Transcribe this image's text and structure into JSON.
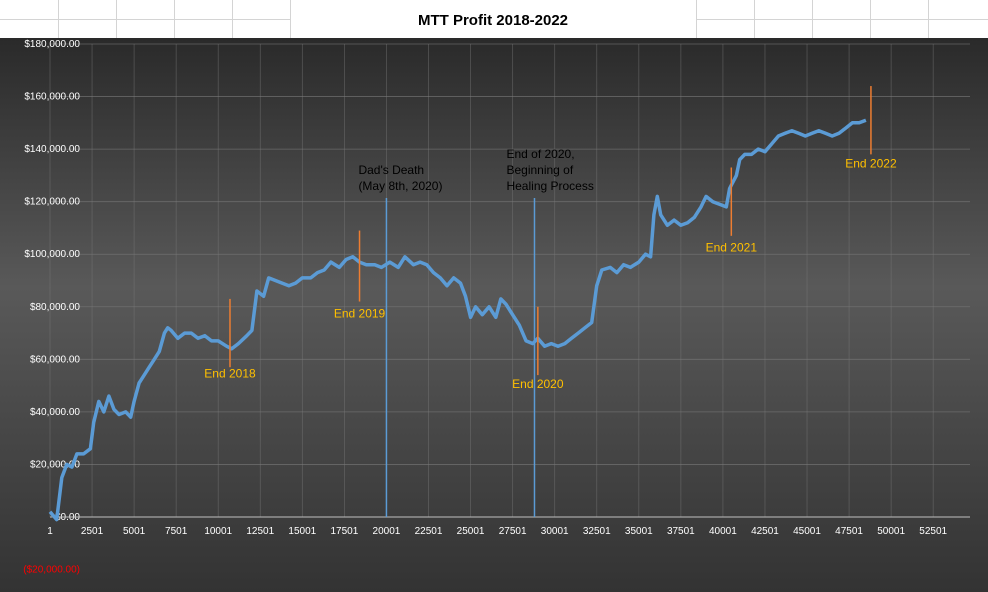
{
  "chart_data": {
    "type": "line",
    "title": "MTT Profit 2018-2022",
    "xlim": [
      1,
      52501
    ],
    "ylim": [
      -20000,
      180000
    ],
    "x_ticks": [
      "1",
      "2501",
      "5001",
      "7501",
      "10001",
      "12501",
      "15001",
      "17501",
      "20001",
      "22501",
      "25001",
      "27501",
      "30001",
      "32501",
      "35001",
      "37501",
      "40001",
      "42501",
      "45001",
      "47501",
      "50001",
      "52501"
    ],
    "y_ticks": [
      {
        "value": 180000,
        "label": "$180,000.00"
      },
      {
        "value": 160000,
        "label": "$160,000.00"
      },
      {
        "value": 140000,
        "label": "$140,000.00"
      },
      {
        "value": 120000,
        "label": "$120,000.00"
      },
      {
        "value": 100000,
        "label": "$100,000.00"
      },
      {
        "value": 80000,
        "label": "$80,000.00"
      },
      {
        "value": 60000,
        "label": "$60,000.00"
      },
      {
        "value": 40000,
        "label": "$40,000.00"
      },
      {
        "value": 20000,
        "label": "$20,000.00"
      },
      {
        "value": 0,
        "label": "$0.00"
      },
      {
        "value": -20000,
        "label": "($20,000.00)",
        "negative": true
      }
    ],
    "series": [
      {
        "points": [
          [
            1,
            2000
          ],
          [
            400,
            -1000
          ],
          [
            700,
            15000
          ],
          [
            1000,
            20000
          ],
          [
            1300,
            19000
          ],
          [
            1600,
            24000
          ],
          [
            2000,
            24000
          ],
          [
            2400,
            26000
          ],
          [
            2600,
            36000
          ],
          [
            2900,
            44000
          ],
          [
            3200,
            40000
          ],
          [
            3500,
            46000
          ],
          [
            3800,
            41000
          ],
          [
            4100,
            39000
          ],
          [
            4500,
            40000
          ],
          [
            4800,
            38000
          ],
          [
            5000,
            44000
          ],
          [
            5300,
            51000
          ],
          [
            5600,
            54000
          ],
          [
            5900,
            57000
          ],
          [
            6200,
            60000
          ],
          [
            6500,
            63000
          ],
          [
            6800,
            70000
          ],
          [
            7000,
            72000
          ],
          [
            7200,
            71000
          ],
          [
            7600,
            68000
          ],
          [
            8000,
            70000
          ],
          [
            8400,
            70000
          ],
          [
            8800,
            68000
          ],
          [
            9200,
            69000
          ],
          [
            9600,
            67000
          ],
          [
            10000,
            67000
          ],
          [
            10500,
            65000
          ],
          [
            10800,
            64000
          ],
          [
            11200,
            66000
          ],
          [
            11700,
            69000
          ],
          [
            12000,
            71000
          ],
          [
            12300,
            86000
          ],
          [
            12700,
            84000
          ],
          [
            13000,
            91000
          ],
          [
            13400,
            90000
          ],
          [
            13800,
            89000
          ],
          [
            14200,
            88000
          ],
          [
            14600,
            89000
          ],
          [
            15000,
            91000
          ],
          [
            15500,
            91000
          ],
          [
            15900,
            93000
          ],
          [
            16300,
            94000
          ],
          [
            16700,
            97000
          ],
          [
            17200,
            95000
          ],
          [
            17600,
            98000
          ],
          [
            18000,
            99000
          ],
          [
            18400,
            97000
          ],
          [
            18800,
            96000
          ],
          [
            19300,
            96000
          ],
          [
            19700,
            95000
          ],
          [
            20200,
            97000
          ],
          [
            20700,
            95000
          ],
          [
            21100,
            99000
          ],
          [
            21600,
            96000
          ],
          [
            22000,
            97000
          ],
          [
            22400,
            96000
          ],
          [
            22800,
            93000
          ],
          [
            23200,
            91000
          ],
          [
            23600,
            88000
          ],
          [
            24000,
            91000
          ],
          [
            24400,
            89000
          ],
          [
            24700,
            84000
          ],
          [
            25000,
            76000
          ],
          [
            25300,
            80000
          ],
          [
            25700,
            77000
          ],
          [
            26100,
            80000
          ],
          [
            26500,
            76000
          ],
          [
            26800,
            83000
          ],
          [
            27100,
            81000
          ],
          [
            27500,
            77000
          ],
          [
            27900,
            73000
          ],
          [
            28300,
            67000
          ],
          [
            28700,
            66000
          ],
          [
            29000,
            68000
          ],
          [
            29400,
            65000
          ],
          [
            29800,
            66000
          ],
          [
            30200,
            65000
          ],
          [
            30600,
            66000
          ],
          [
            31000,
            68000
          ],
          [
            31400,
            70000
          ],
          [
            31800,
            72000
          ],
          [
            32200,
            74000
          ],
          [
            32500,
            88000
          ],
          [
            32800,
            94000
          ],
          [
            33300,
            95000
          ],
          [
            33700,
            93000
          ],
          [
            34100,
            96000
          ],
          [
            34500,
            95000
          ],
          [
            35000,
            97000
          ],
          [
            35400,
            100000
          ],
          [
            35700,
            99000
          ],
          [
            35900,
            115000
          ],
          [
            36100,
            122000
          ],
          [
            36300,
            115000
          ],
          [
            36700,
            111000
          ],
          [
            37100,
            113000
          ],
          [
            37500,
            111000
          ],
          [
            37900,
            112000
          ],
          [
            38300,
            114000
          ],
          [
            38700,
            118000
          ],
          [
            39000,
            122000
          ],
          [
            39400,
            120000
          ],
          [
            39800,
            119000
          ],
          [
            40200,
            118000
          ],
          [
            40400,
            125000
          ],
          [
            40800,
            130000
          ],
          [
            41000,
            136000
          ],
          [
            41300,
            138000
          ],
          [
            41700,
            138000
          ],
          [
            42100,
            140000
          ],
          [
            42500,
            139000
          ],
          [
            42900,
            142000
          ],
          [
            43300,
            145000
          ],
          [
            43700,
            146000
          ],
          [
            44100,
            147000
          ],
          [
            44500,
            146000
          ],
          [
            44900,
            145000
          ],
          [
            45300,
            146000
          ],
          [
            45700,
            147000
          ],
          [
            46100,
            146000
          ],
          [
            46500,
            145000
          ],
          [
            46900,
            146000
          ],
          [
            47300,
            148000
          ],
          [
            47700,
            150000
          ],
          [
            48100,
            150000
          ],
          [
            48500,
            151000
          ]
        ]
      }
    ],
    "annotations": [
      {
        "label": "End 2018",
        "x": 10700,
        "color": "#ED7D31",
        "text_color": "#FFC000",
        "low": 57000,
        "high": 83000,
        "text_value": 53000
      },
      {
        "label": "End 2019",
        "x": 18400,
        "color": "#ED7D31",
        "text_color": "#FFC000",
        "low": 82000,
        "high": 109000,
        "text_value": 76000
      },
      {
        "label": "End 2020",
        "x": 29000,
        "color": "#ED7D31",
        "text_color": "#FFC000",
        "low": 54000,
        "high": 80000,
        "text_value": 49000
      },
      {
        "label": "End 2021",
        "x": 40500,
        "color": "#ED7D31",
        "text_color": "#FFC000",
        "low": 107000,
        "high": 133000,
        "text_value": 101000
      },
      {
        "label": "End 2022",
        "x": 48800,
        "color": "#ED7D31",
        "text_color": "#FFC000",
        "low": 138000,
        "high": 164000,
        "text_value": 133000
      }
    ],
    "events": [
      {
        "lines": [
          "Dad's Death",
          "(May 8th, 2020)"
        ],
        "x": 20000,
        "color": "#5B9BD5"
      },
      {
        "lines": [
          "End of 2020,",
          "Beginning of",
          "Healing Process"
        ],
        "x": 28800,
        "color": "#5B9BD5"
      }
    ],
    "grid": true,
    "colors": {
      "line": "#5B9BD5",
      "background_top": "#2A2A2A",
      "background_mid": "#595959",
      "negative_tick": "#FF0000"
    }
  }
}
